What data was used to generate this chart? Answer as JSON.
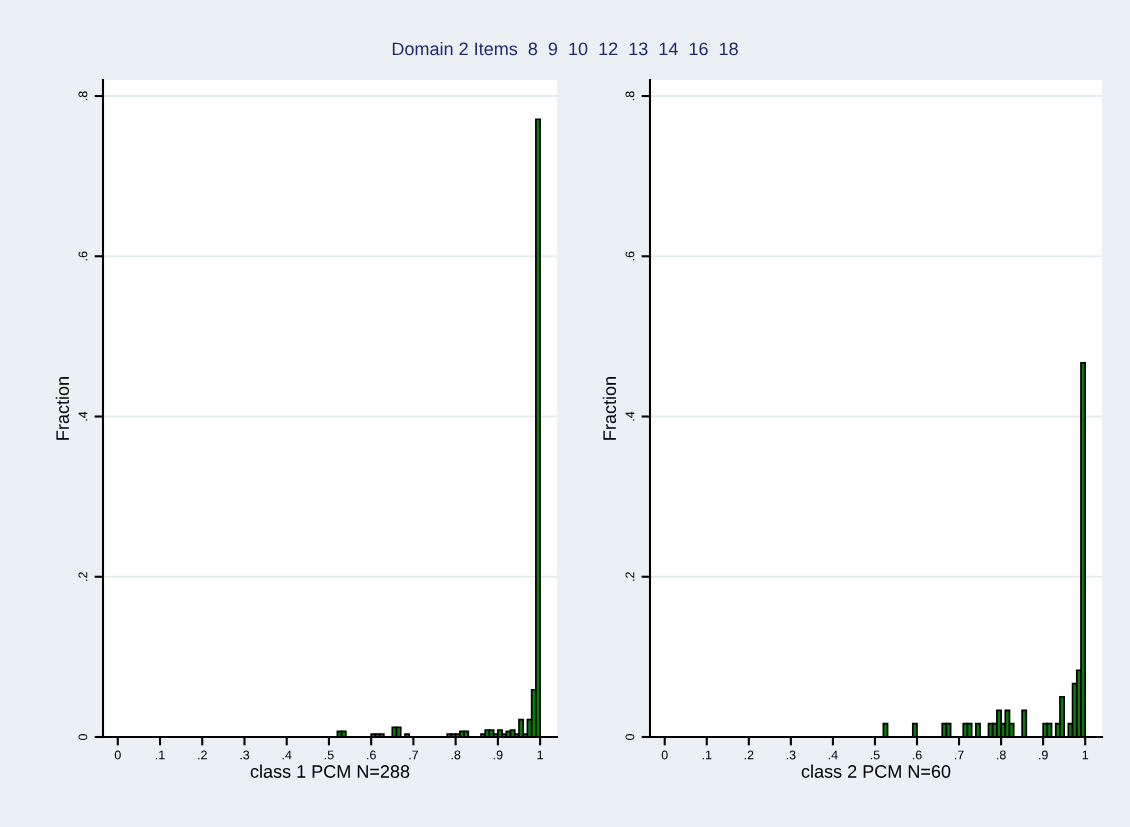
{
  "chart_data": [
    {
      "type": "histogram",
      "title": "Domain 2 Items  8  9  10  12  13  14  16  18",
      "xlabel": "class 1 PCM N=288",
      "ylabel": "Fraction",
      "color": "#0a7a0a",
      "bins": [
        0.5,
        0.51,
        0.52,
        0.53,
        0.54,
        0.55,
        0.56,
        0.57,
        0.58,
        0.59,
        0.6,
        0.61,
        0.62,
        0.63,
        0.64,
        0.65,
        0.66,
        0.67,
        0.68,
        0.69,
        0.7,
        0.71,
        0.72,
        0.73,
        0.74,
        0.75,
        0.76,
        0.77,
        0.78,
        0.79,
        0.8,
        0.81,
        0.82,
        0.83,
        0.84,
        0.85,
        0.86,
        0.87,
        0.88,
        0.89,
        0.9,
        0.91,
        0.92,
        0.93,
        0.94,
        0.95,
        0.96,
        0.97,
        0.98,
        0.99,
        1.0
      ],
      "values": [
        0,
        0,
        0.007,
        0.007,
        0,
        0,
        0,
        0,
        0,
        0,
        0.0035,
        0.0035,
        0.0035,
        0,
        0,
        0.012,
        0.012,
        0,
        0.0035,
        0,
        0,
        0,
        0,
        0,
        0,
        0,
        0,
        0,
        0.0035,
        0.0035,
        0.0035,
        0.007,
        0.007,
        0,
        0,
        0,
        0.0035,
        0.0087,
        0.0087,
        0.0035,
        0.0087,
        0.0035,
        0.007,
        0.0087,
        0.0035,
        0.0216,
        0.0035,
        0.0216,
        0.059,
        0.771
      ],
      "xlim": [
        -0.035,
        1.04
      ],
      "ylim": [
        0,
        0.82
      ],
      "xticks": [
        0,
        {
          "value": 0.1,
          "label": ".1"
        },
        {
          "value": 0.2,
          "label": ".2"
        },
        {
          "value": 0.3,
          "label": ".3"
        },
        {
          "value": 0.4,
          "label": ".4"
        },
        {
          "value": 0.5,
          "label": ".5"
        },
        {
          "value": 0.6,
          "label": ".6"
        },
        {
          "value": 0.7,
          "label": ".7"
        },
        {
          "value": 0.8,
          "label": ".8"
        },
        {
          "value": 0.9,
          "label": ".9"
        },
        1
      ],
      "yticks": [
        0,
        {
          "value": 0.2,
          "label": ".2"
        },
        {
          "value": 0.4,
          "label": ".4"
        },
        {
          "value": 0.6,
          "label": ".6"
        },
        {
          "value": 0.8,
          "label": ".8"
        }
      ],
      "grid": "y"
    },
    {
      "type": "histogram",
      "xlabel": "class 2 PCM N=60",
      "ylabel": "Fraction",
      "color": "#0a7a0a",
      "bins": [
        0.5,
        0.51,
        0.52,
        0.53,
        0.54,
        0.55,
        0.56,
        0.57,
        0.58,
        0.59,
        0.6,
        0.61,
        0.62,
        0.63,
        0.64,
        0.65,
        0.66,
        0.67,
        0.68,
        0.69,
        0.7,
        0.71,
        0.72,
        0.73,
        0.74,
        0.75,
        0.76,
        0.77,
        0.78,
        0.79,
        0.8,
        0.81,
        0.82,
        0.83,
        0.84,
        0.85,
        0.86,
        0.87,
        0.88,
        0.89,
        0.9,
        0.91,
        0.92,
        0.93,
        0.94,
        0.95,
        0.96,
        0.97,
        0.98,
        0.99,
        1.0
      ],
      "values": [
        0,
        0,
        0.0167,
        0,
        0,
        0,
        0,
        0,
        0,
        0.0167,
        0,
        0,
        0,
        0,
        0,
        0,
        0.0167,
        0.0167,
        0,
        0,
        0,
        0.0167,
        0.0167,
        0,
        0.0167,
        0,
        0,
        0.0167,
        0.0167,
        0.0333,
        0.0167,
        0.0333,
        0.0167,
        0,
        0,
        0.0333,
        0,
        0,
        0,
        0,
        0.0167,
        0.0167,
        0,
        0.0167,
        0.05,
        0,
        0.0167,
        0.0667,
        0.0833,
        0.467
      ],
      "xlim": [
        -0.035,
        1.04
      ],
      "ylim": [
        0,
        0.82
      ],
      "xticks": [
        0,
        {
          "value": 0.1,
          "label": ".1"
        },
        {
          "value": 0.2,
          "label": ".2"
        },
        {
          "value": 0.3,
          "label": ".3"
        },
        {
          "value": 0.4,
          "label": ".4"
        },
        {
          "value": 0.5,
          "label": ".5"
        },
        {
          "value": 0.6,
          "label": ".6"
        },
        {
          "value": 0.7,
          "label": ".7"
        },
        {
          "value": 0.8,
          "label": ".8"
        },
        {
          "value": 0.9,
          "label": ".9"
        },
        1
      ],
      "yticks": [
        0,
        {
          "value": 0.2,
          "label": ".2"
        },
        {
          "value": 0.4,
          "label": ".4"
        },
        {
          "value": 0.6,
          "label": ".6"
        },
        {
          "value": 0.8,
          "label": ".8"
        }
      ],
      "grid": "y"
    }
  ]
}
